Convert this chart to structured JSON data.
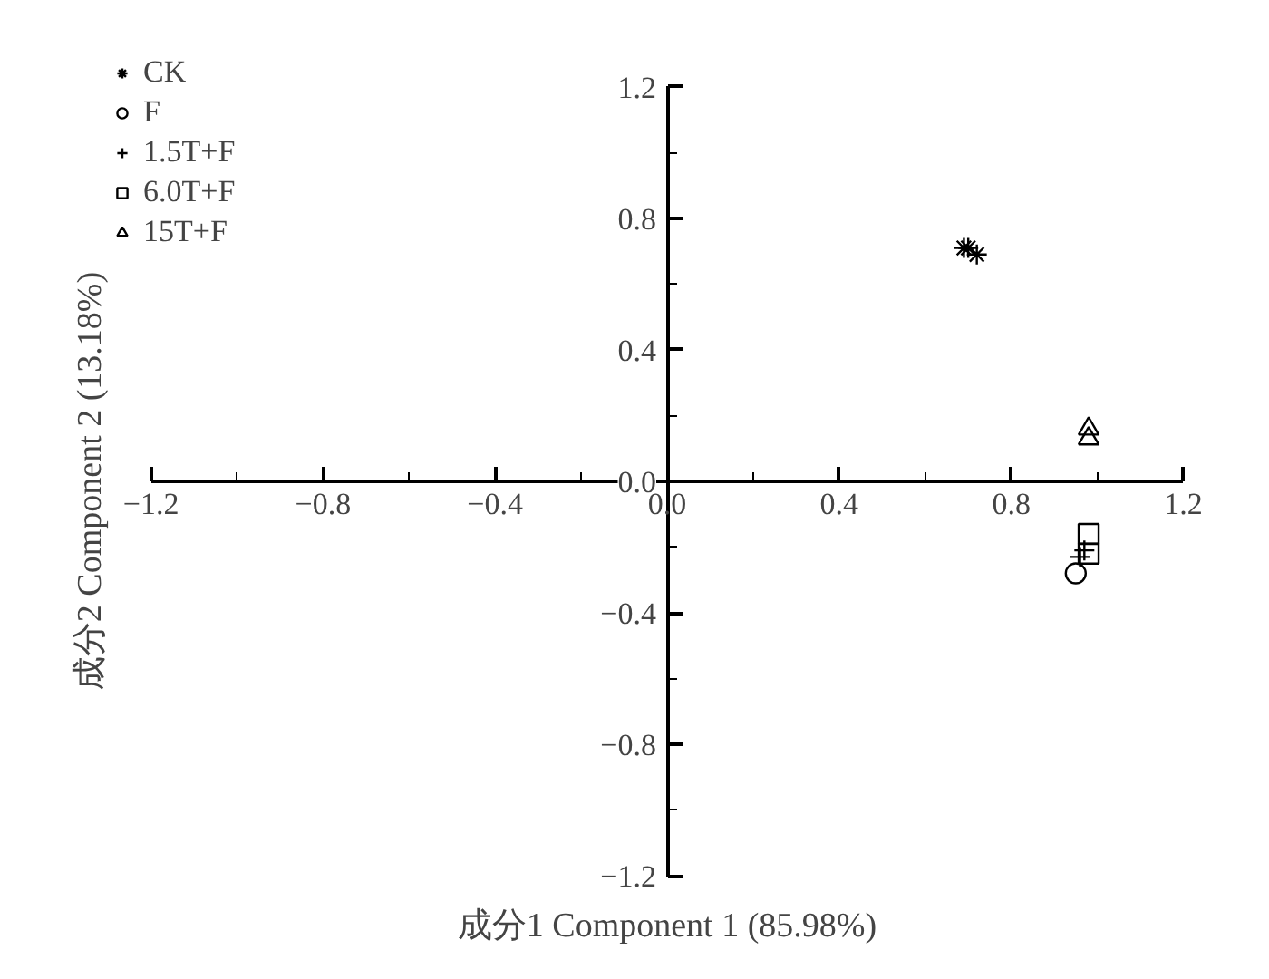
{
  "chart_data": {
    "type": "scatter",
    "xlabel": "成分1 Component 1 (85.98%)",
    "ylabel": "成分2 Component 2 (13.18%)",
    "xlim": [
      -1.2,
      1.2
    ],
    "ylim": [
      -1.2,
      1.2
    ],
    "xticks": [
      -1.2,
      -0.8,
      -0.4,
      {
        "value": 0,
        "label": "0.0"
      },
      0.4,
      0.8,
      1.2
    ],
    "yticks": [
      -1.2,
      -0.8,
      -0.4,
      {
        "value": 0,
        "label": "0.0"
      },
      0.4,
      0.8,
      1.2
    ],
    "grid": false,
    "legend": "top left",
    "series": [
      {
        "name": "CK",
        "color": "#000000",
        "x": [
          0.69,
          0.7,
          0.72
        ],
        "values": [
          0.71,
          0.71,
          0.69
        ]
      },
      {
        "name": "F",
        "color": "#000000",
        "marker": "circle",
        "x": [
          0.95
        ],
        "values": [
          -0.28
        ]
      },
      {
        "name": "1.5T+F",
        "color": "#000000",
        "marker": "cross",
        "x": [
          0.96,
          0.97
        ],
        "values": [
          -0.23,
          -0.21
        ]
      },
      {
        "name": "6.0T+F",
        "color": "#000000",
        "marker": "square",
        "x": [
          0.98,
          0.98
        ],
        "values": [
          -0.16,
          -0.22
        ]
      },
      {
        "name": "15T+F",
        "color": "#000000",
        "marker": "triangle",
        "x": [
          0.98,
          0.98
        ],
        "values": [
          0.16,
          0.13
        ]
      }
    ]
  }
}
